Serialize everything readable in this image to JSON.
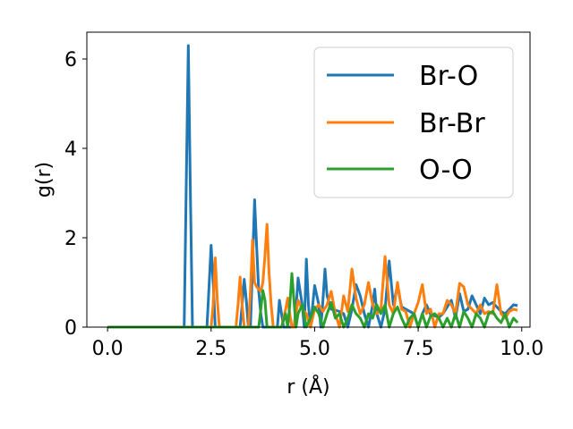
{
  "chart_data": {
    "type": "line",
    "xlabel": "r (Å)",
    "ylabel": "g(r)",
    "xlim": [
      -0.5,
      10.2
    ],
    "ylim": [
      0,
      6.6
    ],
    "xticks": [
      0.0,
      2.5,
      5.0,
      7.5,
      10.0
    ],
    "xtick_labels": [
      "0.0",
      "2.5",
      "5.0",
      "7.5",
      "10.0"
    ],
    "yticks": [
      0,
      2,
      4,
      6
    ],
    "ytick_labels": [
      "0",
      "2",
      "4",
      "6"
    ],
    "grid": false,
    "legend_position": "top-right",
    "series": [
      {
        "name": "Br-O",
        "color": "#1f77b4",
        "x": [
          0,
          1.8,
          1.85,
          1.9,
          1.95,
          2.0,
          2.05,
          2.4,
          2.45,
          2.5,
          2.55,
          2.6,
          2.65,
          3.2,
          3.25,
          3.3,
          3.35,
          3.4,
          3.45,
          3.5,
          3.55,
          3.6,
          3.65,
          3.7,
          3.75,
          4.1,
          4.15,
          4.2,
          4.25,
          4.3,
          4.4,
          4.5,
          4.55,
          4.6,
          4.7,
          4.75,
          4.8,
          4.85,
          4.9,
          5.0,
          5.1,
          5.15,
          5.2,
          5.25,
          5.3,
          5.4,
          5.5,
          5.6,
          5.7,
          5.8,
          5.9,
          6.0,
          6.1,
          6.2,
          6.3,
          6.4,
          6.45,
          6.5,
          6.6,
          6.7,
          6.8,
          6.9,
          7.0,
          7.1,
          7.2,
          7.3,
          7.4,
          7.5,
          7.6,
          7.7,
          7.8,
          7.9,
          8.0,
          8.1,
          8.2,
          8.3,
          8.4,
          8.5,
          8.6,
          8.7,
          8.8,
          8.9,
          9.0,
          9.1,
          9.2,
          9.3,
          9.4,
          9.5,
          9.6,
          9.7,
          9.8,
          9.9
        ],
        "y": [
          0,
          0,
          0,
          3.2,
          6.3,
          3.0,
          0,
          0,
          0.9,
          1.83,
          1.0,
          0,
          0,
          0,
          0.5,
          1.07,
          0.6,
          0,
          0,
          1.4,
          2.85,
          1.8,
          0.8,
          0.3,
          0,
          0,
          0.6,
          0.3,
          0,
          0,
          0,
          0,
          0.4,
          1.1,
          0.5,
          0,
          1.52,
          0.5,
          0,
          0.93,
          0.5,
          0,
          0.6,
          1.3,
          0.7,
          0.4,
          0.38,
          0.35,
          0.3,
          0,
          0.4,
          0.95,
          0.7,
          0.3,
          0,
          0.5,
          0.85,
          0.3,
          0,
          0.4,
          1.48,
          0.5,
          0.93,
          0.45,
          0.4,
          0.35,
          0.3,
          0,
          0.3,
          0.5,
          0.28,
          0.25,
          0.22,
          0.3,
          0.45,
          0.6,
          0.2,
          0.75,
          0.35,
          0.4,
          0.7,
          0.5,
          0.3,
          0.65,
          0.5,
          0.55,
          0.45,
          0.35,
          0.3,
          0.4,
          0.5,
          0.48
        ],
        "line_width": 3
      },
      {
        "name": "Br-Br",
        "color": "#ff7f0e",
        "x": [
          0,
          2.4,
          2.45,
          2.5,
          2.55,
          2.6,
          2.65,
          2.7,
          2.75,
          2.8,
          3.1,
          3.15,
          3.2,
          3.25,
          3.3,
          3.4,
          3.45,
          3.5,
          3.55,
          3.6,
          3.65,
          3.7,
          3.75,
          3.8,
          3.85,
          3.9,
          3.95,
          4.0,
          4.1,
          4.2,
          4.3,
          4.35,
          4.4,
          4.45,
          4.5,
          4.6,
          4.7,
          4.8,
          4.9,
          5.0,
          5.1,
          5.2,
          5.3,
          5.4,
          5.5,
          5.6,
          5.7,
          5.8,
          5.9,
          6.0,
          6.1,
          6.2,
          6.3,
          6.4,
          6.5,
          6.6,
          6.7,
          6.8,
          6.9,
          7.0,
          7.1,
          7.2,
          7.3,
          7.4,
          7.5,
          7.6,
          7.7,
          7.8,
          7.9,
          8.0,
          8.1,
          8.2,
          8.3,
          8.4,
          8.5,
          8.6,
          8.7,
          8.8,
          8.9,
          9.0,
          9.1,
          9.2,
          9.3,
          9.4,
          9.5,
          9.6,
          9.7,
          9.8,
          9.9
        ],
        "y": [
          0,
          0,
          0,
          0,
          0.5,
          1.55,
          0.6,
          0,
          0,
          0,
          0,
          0.5,
          1.12,
          0.5,
          0,
          0,
          0.8,
          1.95,
          1.0,
          0.9,
          0.85,
          0.8,
          1.0,
          1.6,
          2.3,
          1.2,
          0.5,
          0,
          0,
          0,
          0.4,
          0.65,
          0.3,
          0,
          0,
          0.6,
          0.4,
          0.3,
          0,
          0.4,
          0.5,
          0.35,
          0.5,
          0.8,
          0.3,
          0,
          0.7,
          0.35,
          1.3,
          0.65,
          0.3,
          0.5,
          1.0,
          0.5,
          0.3,
          0.4,
          1.58,
          0.5,
          0.3,
          1.0,
          0.4,
          0.35,
          0,
          0.3,
          0.55,
          0.95,
          0.3,
          0.4,
          0,
          0.3,
          0.3,
          0.6,
          0.5,
          0.3,
          0.98,
          0.9,
          0.5,
          0.4,
          0.3,
          0.5,
          0.3,
          0.35,
          0.3,
          0.95,
          0.3,
          0.2,
          0.35,
          0.4,
          0.38
        ],
        "line_width": 3
      },
      {
        "name": "O-O",
        "color": "#2ca02c",
        "x": [
          0,
          3.6,
          3.65,
          3.7,
          3.75,
          3.8,
          3.85,
          3.9,
          3.95,
          4.2,
          4.3,
          4.35,
          4.4,
          4.45,
          4.5,
          4.55,
          4.6,
          4.7,
          4.8,
          4.9,
          5.0,
          5.1,
          5.2,
          5.3,
          5.4,
          5.5,
          5.6,
          5.7,
          5.8,
          5.9,
          6.0,
          6.1,
          6.2,
          6.3,
          6.4,
          6.5,
          6.6,
          6.7,
          6.8,
          6.9,
          7.0,
          7.1,
          7.2,
          7.3,
          7.4,
          7.5,
          7.6,
          7.7,
          7.8,
          7.9,
          8.0,
          8.1,
          8.2,
          8.3,
          8.4,
          8.5,
          8.6,
          8.7,
          8.8,
          8.9,
          9.0,
          9.1,
          9.2,
          9.3,
          9.4,
          9.5,
          9.6,
          9.7,
          9.8,
          9.9
        ],
        "y": [
          0,
          0,
          0,
          0.4,
          0.82,
          0.6,
          0,
          0,
          0,
          0,
          0.3,
          0,
          0.5,
          1.2,
          0.6,
          0,
          0.3,
          0.5,
          0,
          0.2,
          0.45,
          0.3,
          0,
          0.3,
          0.55,
          0.2,
          0.3,
          0,
          0.2,
          0.5,
          0.3,
          0.2,
          0,
          0.3,
          0.2,
          0.5,
          0.3,
          0.5,
          0,
          0.3,
          0.45,
          0.2,
          0,
          0.2,
          0.3,
          0,
          0.3,
          0,
          0.25,
          0.3,
          0.2,
          0,
          0.2,
          0,
          0.3,
          0,
          0.35,
          0.2,
          0,
          0.3,
          0.2,
          0,
          0.3,
          0.35,
          0.2,
          0.1,
          0.3,
          0,
          0.2,
          0.1
        ],
        "line_width": 3
      }
    ]
  }
}
